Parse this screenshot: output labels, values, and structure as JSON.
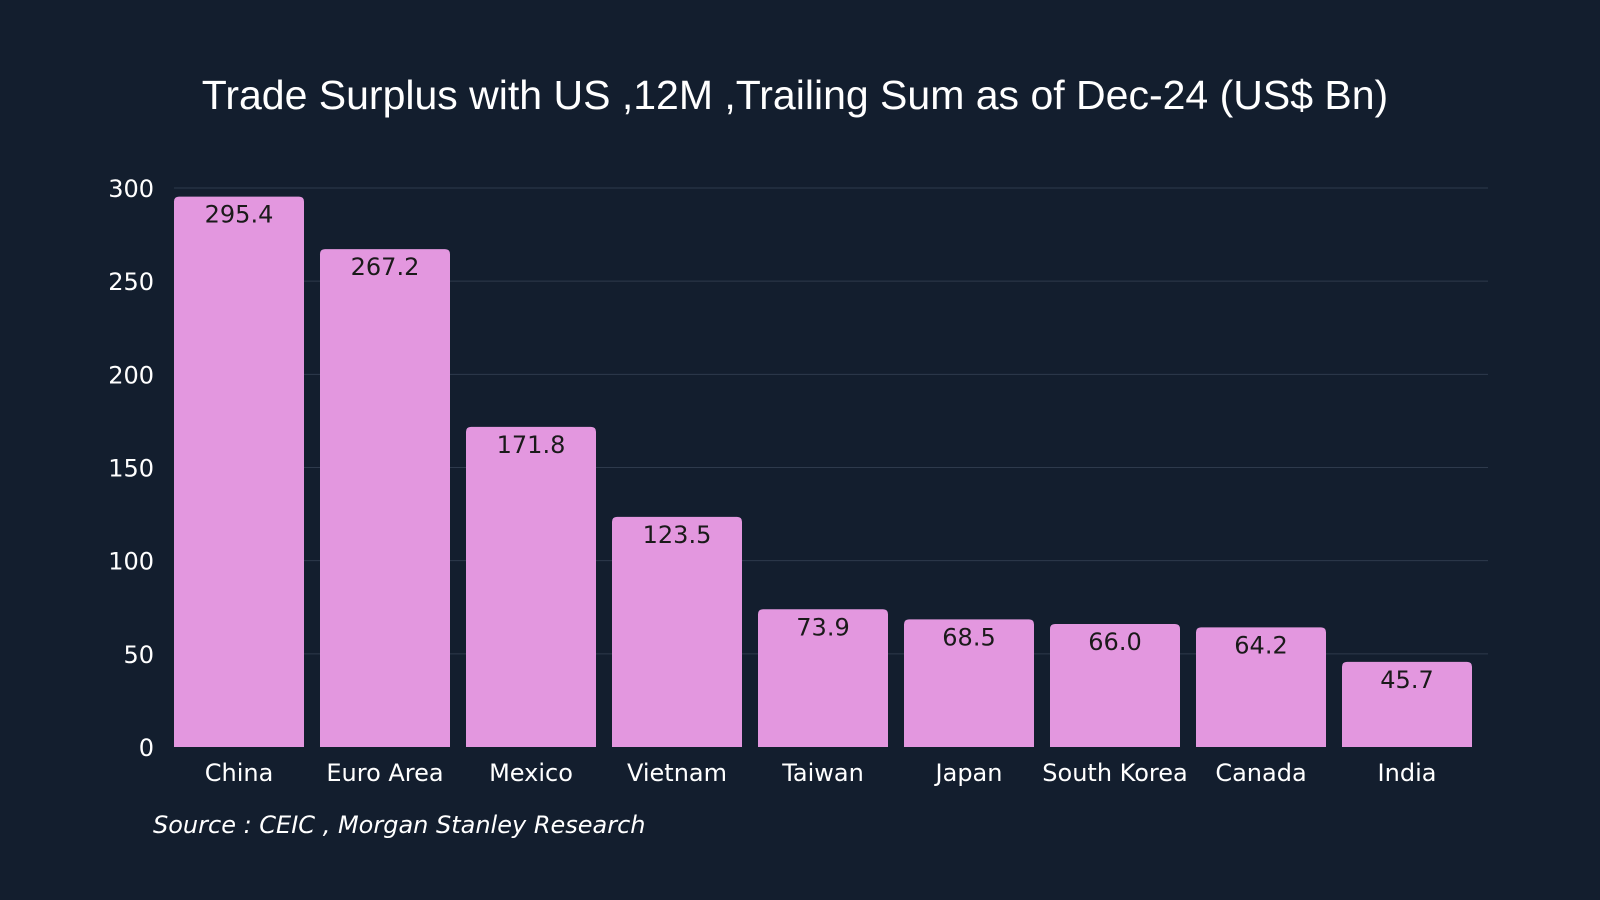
{
  "chart_data": {
    "type": "bar",
    "title": "Trade Surplus with US ,12M ,Trailing Sum as of Dec-24 (US$ Bn)",
    "xlabel": "",
    "ylabel": "",
    "categories": [
      "China",
      "Euro Area",
      "Mexico",
      "Vietnam",
      "Taiwan",
      "Japan",
      "South Korea",
      "Canada",
      "India"
    ],
    "values": [
      295.4,
      267.2,
      171.8,
      123.5,
      73.9,
      68.5,
      66.0,
      64.2,
      45.7
    ],
    "value_labels": [
      "295.4",
      "267.2",
      "171.8",
      "123.5",
      "73.9",
      "68.5",
      "66.0",
      "64.2",
      "45.7"
    ],
    "ylim": [
      0,
      300
    ],
    "yticks": [
      0,
      50,
      100,
      150,
      200,
      250,
      300
    ],
    "grid": true,
    "legend": "none",
    "source": "Source : CEIC , Morgan Stanley Research"
  },
  "colors": {
    "background": "#131e2e",
    "bar": "#e397df",
    "gridline": "#2e3a4c",
    "text": "#ffffff",
    "value_text": "#1a1a1a"
  }
}
